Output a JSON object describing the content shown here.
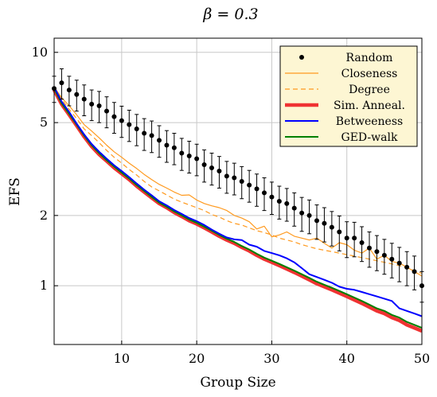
{
  "chart_data": {
    "type": "line",
    "title": "β = 0.3",
    "xlabel": "Group Size",
    "ylabel": "EFS",
    "xlim": [
      1,
      50
    ],
    "ylim": [
      0.56,
      11.5
    ],
    "yscale": "log",
    "grid": true,
    "legend_position": "top-right",
    "x_ticks": [
      10,
      20,
      30,
      40,
      50
    ],
    "x_tick_labels": [
      "10",
      "20",
      "30",
      "40",
      "50"
    ],
    "y_ticks": [
      1,
      2,
      5,
      10
    ],
    "y_tick_labels": [
      "1",
      "2",
      "5",
      "10"
    ],
    "x": [
      1,
      2,
      3,
      4,
      5,
      6,
      7,
      8,
      9,
      10,
      11,
      12,
      13,
      14,
      15,
      16,
      17,
      18,
      19,
      20,
      21,
      22,
      23,
      24,
      25,
      26,
      27,
      28,
      29,
      30,
      31,
      32,
      33,
      34,
      35,
      36,
      37,
      38,
      39,
      40,
      41,
      42,
      43,
      44,
      45,
      46,
      47,
      48,
      49,
      50
    ],
    "series": [
      {
        "name": "Random",
        "style": "dots-errorbars",
        "color": "#000000",
        "values": [
          7.0,
          7.4,
          6.9,
          6.6,
          6.3,
          6.0,
          5.9,
          5.6,
          5.3,
          5.1,
          4.9,
          4.7,
          4.5,
          4.4,
          4.2,
          4.0,
          3.9,
          3.7,
          3.6,
          3.5,
          3.3,
          3.2,
          3.1,
          2.95,
          2.9,
          2.8,
          2.7,
          2.6,
          2.5,
          2.4,
          2.3,
          2.25,
          2.15,
          2.05,
          2.0,
          1.9,
          1.85,
          1.78,
          1.7,
          1.6,
          1.6,
          1.53,
          1.45,
          1.4,
          1.35,
          1.3,
          1.25,
          1.2,
          1.15,
          1.0
        ],
        "errors": [
          0.9,
          1.1,
          1.0,
          1.0,
          0.95,
          0.9,
          0.9,
          0.85,
          0.8,
          0.78,
          0.75,
          0.72,
          0.7,
          0.68,
          0.65,
          0.62,
          0.6,
          0.58,
          0.56,
          0.54,
          0.52,
          0.5,
          0.48,
          0.46,
          0.45,
          0.44,
          0.42,
          0.41,
          0.4,
          0.38,
          0.37,
          0.36,
          0.35,
          0.34,
          0.33,
          0.32,
          0.31,
          0.3,
          0.29,
          0.28,
          0.27,
          0.26,
          0.25,
          0.24,
          0.23,
          0.22,
          0.21,
          0.2,
          0.19,
          0.15
        ]
      },
      {
        "name": "Closeness",
        "style": "solid",
        "color": "#ff9a1f",
        "values": [
          7.1,
          6.4,
          5.9,
          5.4,
          4.9,
          4.6,
          4.3,
          4.0,
          3.75,
          3.55,
          3.35,
          3.18,
          3.0,
          2.85,
          2.72,
          2.62,
          2.52,
          2.44,
          2.45,
          2.33,
          2.25,
          2.2,
          2.16,
          2.1,
          2.0,
          1.95,
          1.88,
          1.75,
          1.8,
          1.62,
          1.65,
          1.7,
          1.63,
          1.6,
          1.57,
          1.6,
          1.52,
          1.45,
          1.53,
          1.5,
          1.42,
          1.38,
          1.45,
          1.3,
          1.35,
          1.27,
          1.25,
          1.2,
          1.15,
          1.1
        ]
      },
      {
        "name": "Degree",
        "style": "dashed",
        "color": "#ff9a1f",
        "values": [
          7.0,
          6.3,
          5.7,
          5.2,
          4.7,
          4.4,
          4.1,
          3.8,
          3.55,
          3.35,
          3.15,
          2.98,
          2.8,
          2.65,
          2.55,
          2.45,
          2.35,
          2.28,
          2.22,
          2.16,
          2.1,
          2.02,
          1.97,
          1.9,
          1.85,
          1.82,
          1.77,
          1.72,
          1.69,
          1.65,
          1.6,
          1.57,
          1.54,
          1.5,
          1.47,
          1.44,
          1.42,
          1.4,
          1.38,
          1.36,
          1.34,
          1.32,
          1.3,
          1.28,
          1.26,
          1.24,
          1.22,
          1.19,
          1.16,
          1.13
        ]
      },
      {
        "name": "Sim.  Anneal.",
        "style": "thick",
        "color": "#f03232",
        "values": [
          6.9,
          6.0,
          5.4,
          4.85,
          4.35,
          3.95,
          3.65,
          3.42,
          3.2,
          3.02,
          2.85,
          2.67,
          2.52,
          2.38,
          2.25,
          2.16,
          2.06,
          1.98,
          1.9,
          1.84,
          1.77,
          1.7,
          1.63,
          1.57,
          1.52,
          1.46,
          1.41,
          1.35,
          1.3,
          1.26,
          1.22,
          1.18,
          1.14,
          1.1,
          1.06,
          1.02,
          0.99,
          0.96,
          0.93,
          0.9,
          0.87,
          0.84,
          0.81,
          0.78,
          0.76,
          0.73,
          0.71,
          0.68,
          0.66,
          0.64
        ]
      },
      {
        "name": "Betweeness",
        "style": "solid",
        "color": "#0000ff",
        "values": [
          7.1,
          6.15,
          5.55,
          4.95,
          4.45,
          4.05,
          3.75,
          3.5,
          3.28,
          3.1,
          2.92,
          2.74,
          2.58,
          2.44,
          2.3,
          2.21,
          2.11,
          2.03,
          1.95,
          1.89,
          1.82,
          1.74,
          1.67,
          1.61,
          1.58,
          1.57,
          1.5,
          1.47,
          1.41,
          1.38,
          1.35,
          1.31,
          1.26,
          1.19,
          1.12,
          1.09,
          1.06,
          1.03,
          0.99,
          0.97,
          0.96,
          0.94,
          0.92,
          0.9,
          0.88,
          0.86,
          0.8,
          0.78,
          0.76,
          0.74
        ]
      },
      {
        "name": "GED-walk",
        "style": "solid",
        "color": "#008000",
        "values": [
          7.0,
          6.05,
          5.45,
          4.9,
          4.4,
          4.0,
          3.7,
          3.45,
          3.24,
          3.05,
          2.88,
          2.7,
          2.55,
          2.4,
          2.27,
          2.18,
          2.08,
          2.0,
          1.92,
          1.86,
          1.79,
          1.72,
          1.65,
          1.59,
          1.54,
          1.48,
          1.43,
          1.37,
          1.32,
          1.28,
          1.24,
          1.2,
          1.16,
          1.12,
          1.08,
          1.04,
          1.01,
          0.98,
          0.95,
          0.92,
          0.89,
          0.86,
          0.83,
          0.8,
          0.78,
          0.75,
          0.73,
          0.7,
          0.68,
          0.66
        ]
      }
    ]
  }
}
